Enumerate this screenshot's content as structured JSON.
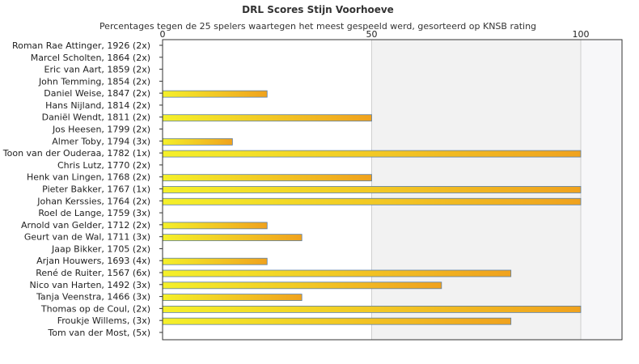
{
  "chart_data": {
    "type": "bar",
    "orientation": "horizontal",
    "title": "DRL Scores Stijn Voorhoeve",
    "subtitle": "Percentages tegen de 25 spelers waartegen het meest gespeeld werd, gesorteerd op KNSB rating",
    "xlim": [
      0,
      110
    ],
    "xticks": [
      "0",
      "50",
      "100"
    ],
    "tick_values": [
      0,
      50,
      100
    ],
    "categories": [
      "Roman Rae Attinger, 1926 (2x)",
      "Marcel Scholten, 1864 (2x)",
      "Eric van Aart, 1859 (2x)",
      "John Temming, 1854 (2x)",
      "Daniel Weise, 1847 (2x)",
      "Hans Nijland, 1814 (2x)",
      "Daniël Wendt, 1811 (2x)",
      "Jos Heesen, 1799 (2x)",
      "Almer Toby, 1794 (3x)",
      "Toon van der Ouderaa, 1782 (1x)",
      "Chris Lutz, 1770 (2x)",
      "Henk van Lingen, 1768 (2x)",
      "Pieter Bakker, 1767 (1x)",
      "Johan Kerssies, 1764 (2x)",
      "Roel de Lange, 1759 (3x)",
      "Arnold van Gelder, 1712 (2x)",
      "Geurt van de Wal, 1711 (3x)",
      "Jaap Bikker, 1705 (2x)",
      "Arjan Houwers, 1693 (4x)",
      "René de Ruiter, 1567 (6x)",
      "Nico van Harten, 1492 (3x)",
      "Tanja Veenstra, 1466 (3x)",
      "Thomas op de Coul,  (2x)",
      "Froukje Willems,  (3x)",
      "Tom van der Most,  (5x)"
    ],
    "values": [
      0,
      0,
      0,
      0,
      25,
      0,
      50,
      0,
      16.7,
      100,
      0,
      50,
      100,
      100,
      0,
      25,
      33.3,
      0,
      25,
      83.3,
      66.7,
      33.3,
      100,
      83.3,
      0
    ],
    "grid": true,
    "legend": "none",
    "colors": {
      "bar_start": "#f4f02a",
      "bar_end": "#f0a21e",
      "bar_stroke": "#5b7fa6",
      "band_light": "#ffffff",
      "band_mid": "#f2f2f2",
      "band_far": "#f7f7f9",
      "axis": "#333333",
      "gridline": "#cfcfcf"
    }
  }
}
